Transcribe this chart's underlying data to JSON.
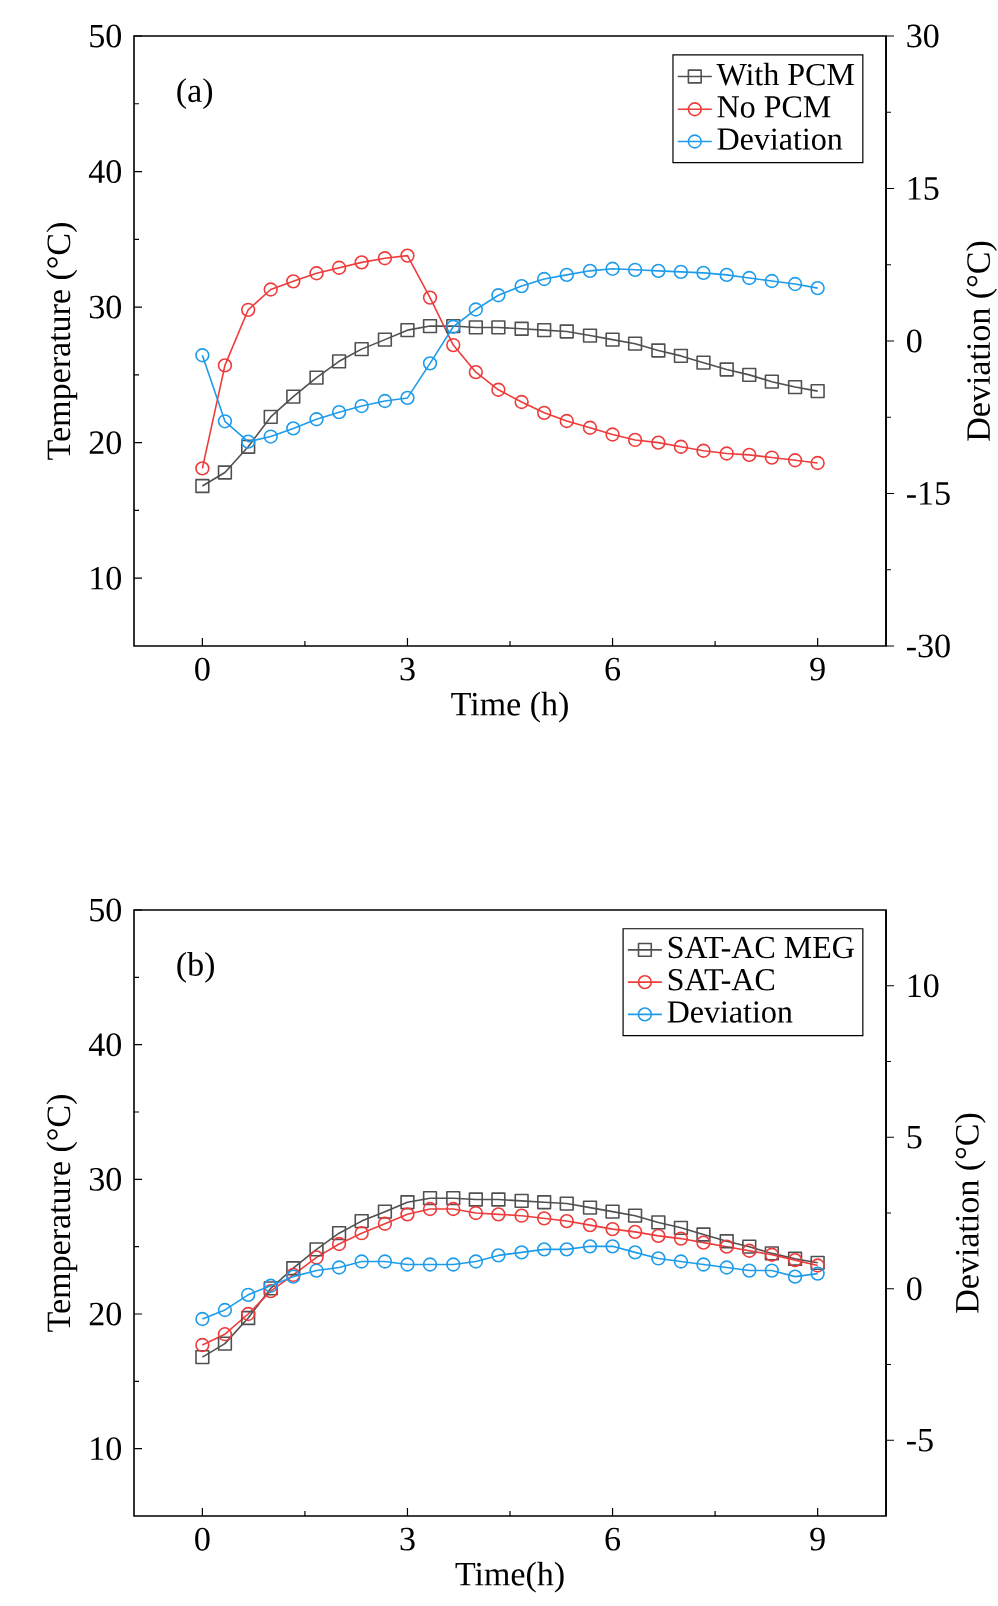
{
  "chart_data": [
    {
      "type": "line",
      "annotations": [
        "(a)"
      ],
      "xlabel": "Time (h)",
      "ylabel": "Temperature (°C)",
      "y2label": "Deviation (°C)",
      "xlim": [
        -1,
        10
      ],
      "ylim": [
        5,
        50
      ],
      "y2lim": [
        -30,
        30
      ],
      "xticks": [
        0,
        3,
        6,
        9
      ],
      "yticks": [
        10,
        20,
        30,
        40,
        50
      ],
      "y2ticks": [
        -30,
        -15,
        0,
        15,
        30
      ],
      "legend": "top right",
      "line_style": "solid",
      "x": [
        0,
        0.33,
        0.67,
        1,
        1.33,
        1.67,
        2,
        2.33,
        2.67,
        3,
        3.33,
        3.67,
        4,
        4.33,
        4.67,
        5,
        5.33,
        5.67,
        6,
        6.33,
        6.67,
        7,
        7.33,
        7.67,
        8,
        8.33,
        8.67,
        9
      ],
      "series": [
        {
          "name": "With PCM",
          "color": "#505050",
          "marker": "square",
          "values": [
            16.8,
            17.8,
            19.7,
            21.9,
            23.4,
            24.8,
            26.0,
            26.9,
            27.6,
            28.3,
            28.6,
            28.6,
            28.5,
            28.5,
            28.4,
            28.3,
            28.2,
            27.9,
            27.6,
            27.3,
            26.8,
            26.4,
            25.9,
            25.4,
            25.0,
            24.5,
            24.1,
            23.8
          ]
        },
        {
          "name": "No PCM",
          "color": "#ee3b3b",
          "marker": "circle",
          "values": [
            18.1,
            25.7,
            29.8,
            31.3,
            31.9,
            32.5,
            32.9,
            33.3,
            33.6,
            33.8,
            30.7,
            27.2,
            25.2,
            23.9,
            23.0,
            22.2,
            21.6,
            21.1,
            20.6,
            20.2,
            20.0,
            19.7,
            19.4,
            19.2,
            19.1,
            18.9,
            18.7,
            18.5
          ]
        },
        {
          "name": "Deviation",
          "color": "#1e9ceb",
          "marker": "circle",
          "axis": "y2",
          "values": [
            -1.4,
            -7.9,
            -9.9,
            -9.4,
            -8.6,
            -7.7,
            -7.0,
            -6.4,
            -5.9,
            -5.6,
            -2.2,
            1.4,
            3.1,
            4.5,
            5.4,
            6.1,
            6.5,
            6.9,
            7.1,
            7.0,
            6.9,
            6.8,
            6.7,
            6.5,
            6.2,
            5.9,
            5.6,
            5.2
          ]
        }
      ]
    },
    {
      "type": "line",
      "annotations": [
        "(b)"
      ],
      "xlabel": "Time(h)",
      "ylabel": "Temperature (°C)",
      "y2label": "Deviation (°C)",
      "xlim": [
        -1,
        10
      ],
      "ylim": [
        5,
        50
      ],
      "y2lim": [
        -7.5,
        12.5
      ],
      "xticks": [
        0,
        3,
        6,
        9
      ],
      "yticks": [
        10,
        20,
        30,
        40,
        50
      ],
      "y2ticks": [
        -5,
        0,
        5,
        10
      ],
      "legend": "top right",
      "line_style": "solid",
      "x": [
        0,
        0.33,
        0.67,
        1,
        1.33,
        1.67,
        2,
        2.33,
        2.67,
        3,
        3.33,
        3.67,
        4,
        4.33,
        4.67,
        5,
        5.33,
        5.67,
        6,
        6.33,
        6.67,
        7,
        7.33,
        7.67,
        8,
        8.33,
        8.67,
        9
      ],
      "series": [
        {
          "name": "SAT-AC MEG",
          "color": "#505050",
          "marker": "square",
          "values": [
            16.8,
            17.8,
            19.7,
            21.9,
            23.4,
            24.8,
            26.0,
            26.9,
            27.6,
            28.3,
            28.6,
            28.6,
            28.5,
            28.5,
            28.4,
            28.3,
            28.2,
            27.9,
            27.6,
            27.3,
            26.8,
            26.4,
            25.9,
            25.4,
            25.0,
            24.5,
            24.1,
            23.8
          ]
        },
        {
          "name": "SAT-AC",
          "color": "#ee3b3b",
          "marker": "circle",
          "values": [
            17.7,
            18.5,
            20.0,
            21.7,
            22.9,
            24.2,
            25.2,
            26.0,
            26.7,
            27.4,
            27.8,
            27.8,
            27.5,
            27.4,
            27.3,
            27.1,
            26.9,
            26.6,
            26.3,
            26.1,
            25.8,
            25.6,
            25.3,
            25.0,
            24.7,
            24.4,
            24.0,
            23.6
          ]
        },
        {
          "name": "Deviation",
          "color": "#1e9ceb",
          "marker": "circle",
          "axis": "y2",
          "values": [
            -1.0,
            -0.7,
            -0.2,
            0.1,
            0.4,
            0.6,
            0.7,
            0.9,
            0.9,
            0.8,
            0.8,
            0.8,
            0.9,
            1.1,
            1.2,
            1.3,
            1.3,
            1.4,
            1.4,
            1.2,
            1.0,
            0.9,
            0.8,
            0.7,
            0.6,
            0.6,
            0.4,
            0.5
          ]
        }
      ]
    }
  ]
}
